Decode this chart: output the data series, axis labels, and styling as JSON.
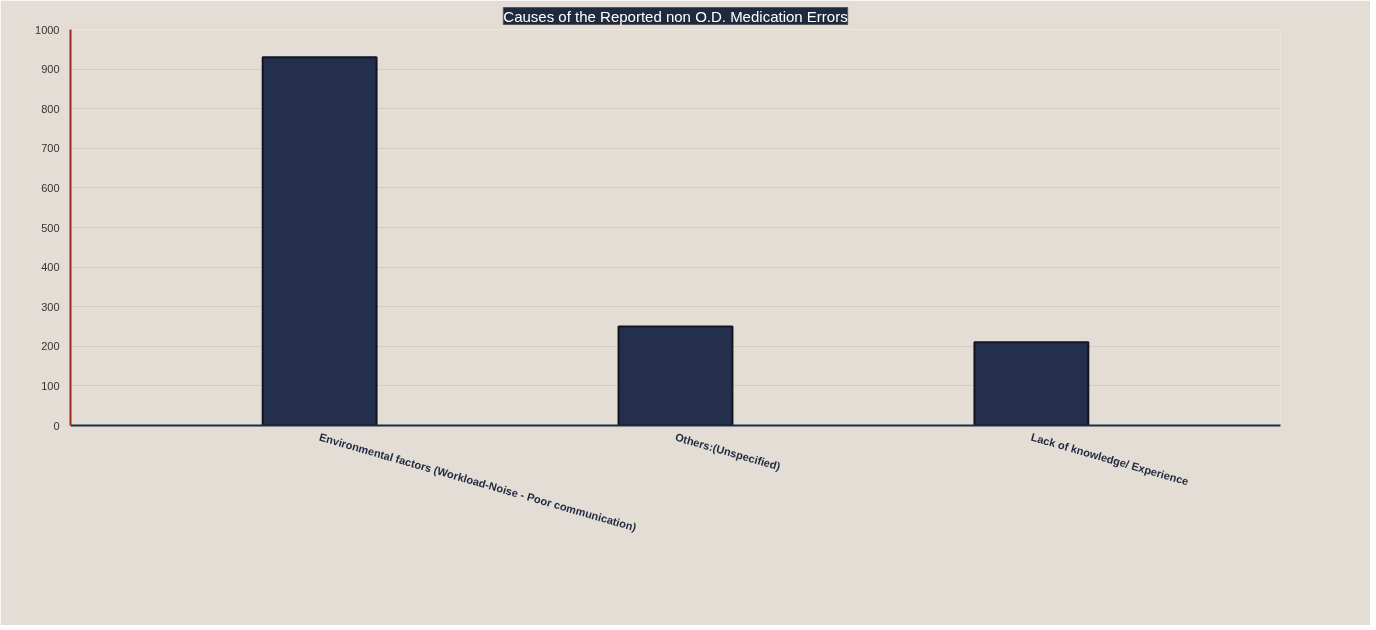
{
  "chart_data": {
    "type": "bar",
    "title": "Causes of the Reported non O.D. Medication Errors",
    "categories": [
      "Environmental factors (Workload-Noise - Poor communication)",
      "Others:(Unspecified)",
      "Lack of knowledge/ Experience"
    ],
    "values": [
      930,
      250,
      210
    ],
    "color": "#232f4b",
    "ylim": [
      0,
      1000
    ],
    "yticks": [
      0,
      100,
      200,
      300,
      400,
      500,
      600,
      700,
      800,
      900,
      1000
    ],
    "grid": "y"
  }
}
